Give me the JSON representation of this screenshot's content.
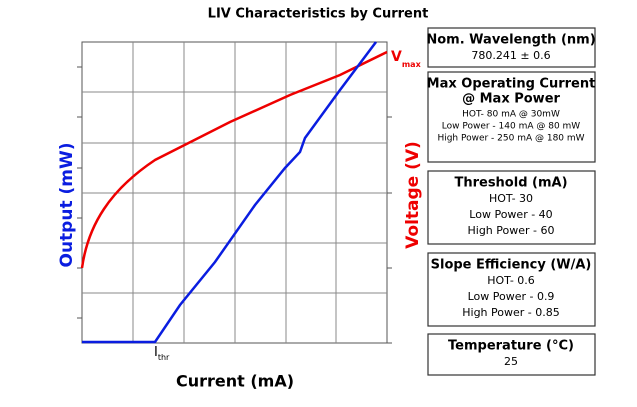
{
  "chart": {
    "title": "LIV Characteristics by Current",
    "y_label": "Output (mW)",
    "y2_label": "Voltage (V)",
    "x_label": "Current (mA)",
    "vmax": {
      "main": "V",
      "sub": "max"
    },
    "ithr": {
      "main": "I",
      "sub": "thr"
    }
  },
  "boxes": [
    {
      "title": [
        "Nom. Wavelength (nm)"
      ],
      "lines": [
        "780.241 ± 0.6"
      ]
    },
    {
      "title": [
        "Max Operating Current",
        "@ Max Power"
      ],
      "lines": [
        "HOT- 80 mA @ 30mW",
        "Low Power - 140 mA @ 80 mW",
        "High Power - 250 mA @ 180 mW"
      ]
    },
    {
      "title": [
        "Threshold (mA)"
      ],
      "lines": [
        "HOT- 30",
        "Low Power - 40",
        "High Power - 60"
      ]
    },
    {
      "title": [
        "Slope Efficiency (W/A)"
      ],
      "lines": [
        "HOT- 0.6",
        "Low Power - 0.9",
        "High Power - 0.85"
      ]
    },
    {
      "title": [
        "Temperature (°C)"
      ],
      "lines": [
        "25"
      ]
    }
  ]
}
